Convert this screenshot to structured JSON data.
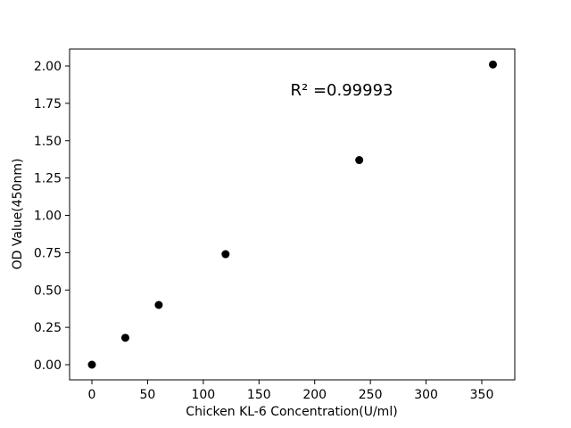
{
  "chart_data": {
    "type": "scatter",
    "title": "",
    "xlabel": "Chicken KL-6 Concentration(U/ml)",
    "ylabel": "OD Value(450nm)",
    "annotation": "R² =0.99993",
    "x": [
      0,
      30,
      60,
      120,
      240,
      360
    ],
    "y": [
      0.0,
      0.18,
      0.4,
      0.74,
      1.37,
      2.01
    ],
    "fit_line": {
      "kind": "polynomial",
      "degree": 3,
      "x_min": 0,
      "x_max": 360
    },
    "x_ticks": [
      0,
      50,
      100,
      150,
      200,
      250,
      300,
      350
    ],
    "y_ticks": [
      0.0,
      0.25,
      0.5,
      0.75,
      1.0,
      1.25,
      1.5,
      1.75,
      2.0
    ],
    "xlim": [
      -20,
      380
    ],
    "ylim": [
      -0.1,
      2.11
    ],
    "grid": false,
    "legend": null,
    "marker_color": "#000000",
    "line_color": "#000000",
    "background_color": "#ffffff"
  }
}
